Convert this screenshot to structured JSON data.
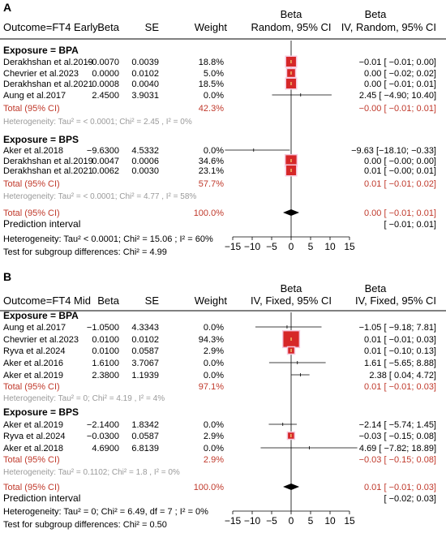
{
  "chart_data": [
    {
      "panel": "A",
      "type": "forest",
      "header": {
        "outcome": "Outcome=FT4 Early",
        "beta": "Beta",
        "se": "SE",
        "weight": "Weight",
        "plot_line1": "Beta",
        "plot_line2": "Random, 95% CI",
        "ci_line1": "Beta",
        "ci_line2": "IV, Random, 95% CI"
      },
      "xlim": [
        -15,
        15
      ],
      "xticks": [
        "−15",
        "−10",
        "−5",
        "0",
        "5",
        "10",
        "15"
      ],
      "xtick_values": [
        -15,
        -10,
        -5,
        0,
        5,
        10,
        15
      ],
      "groups": [
        {
          "title": "Exposure = BPA",
          "studies": [
            {
              "study": "Derakhshan et al.2019",
              "beta": "−0.0070",
              "se": "0.0039",
              "weight": "18.8%",
              "ci_text": "−0.01 [ −0.01;  0.00]",
              "est": -0.01,
              "lo": -0.01,
              "hi": 0.0,
              "box": 1
            },
            {
              "study": "Chevrier et al.2023",
              "beta": "0.0000",
              "se": "0.0102",
              "weight": "5.0%",
              "ci_text": "0.00 [ −0.02;  0.02]",
              "est": 0.0,
              "lo": -0.02,
              "hi": 0.02,
              "box": 0.6
            },
            {
              "study": "Derakhshan et al.2021",
              "beta": "0.0008",
              "se": "0.0040",
              "weight": "18.5%",
              "ci_text": "0.00 [ −0.01;  0.01]",
              "est": 0.0,
              "lo": -0.01,
              "hi": 0.01,
              "box": 1
            },
            {
              "study": "Aung et al.2017",
              "beta": "2.4500",
              "se": "3.9031",
              "weight": "0.0%",
              "ci_text": "2.45 [ −4.90; 10.40]",
              "est": 2.45,
              "lo": -4.9,
              "hi": 10.4,
              "box": 0
            }
          ],
          "total": {
            "label": "Total (95% CI)",
            "weight": "42.3%",
            "ci_text": "−0.00 [ −0.01;  0.01]"
          },
          "heterogeneity": "Heterogeneity: Tau² = < 0.0001; Chi² = 2.45 , I² = 0%"
        },
        {
          "title": "Exposure = BPS",
          "studies": [
            {
              "study": "Aker et al.2018",
              "beta": "−9.6300",
              "se": "4.5332",
              "weight": "0.0%",
              "ci_text": "−9.63 [−18.10; −0.33]",
              "est": -9.63,
              "lo": -18.1,
              "hi": -0.33,
              "box": 0
            },
            {
              "study": "Derakhshan et al.2019",
              "beta": "0.0047",
              "se": "0.0006",
              "weight": "34.6%",
              "ci_text": "0.00 [ −0.00;  0.00]",
              "est": 0.0,
              "lo": -0.0,
              "hi": 0.0,
              "box": 1.2
            },
            {
              "study": "Derakhshan et al.2021",
              "beta": "0.0062",
              "se": "0.0030",
              "weight": "23.1%",
              "ci_text": "0.01 [ −0.00;  0.01]",
              "est": 0.01,
              "lo": -0.0,
              "hi": 0.01,
              "box": 1
            }
          ],
          "total": {
            "label": "Total (95% CI)",
            "weight": "57.7%",
            "ci_text": "0.01 [ −0.01;  0.02]"
          },
          "heterogeneity": "Heterogeneity: Tau² = < 0.0001; Chi² = 4.77 , I² = 58%"
        }
      ],
      "overall": {
        "label": "Total (95% CI)",
        "weight": "100.0%",
        "ci_text": "0.00 [ −0.01;  0.01]",
        "est": 0.0,
        "lo": -0.01,
        "hi": 0.01
      },
      "prediction": {
        "label": "Prediction interval",
        "ci_text": "[ −0.01;  0.01]"
      },
      "heterogeneity": "Heterogeneity: Tau² < 0.0001; Chi² = 15.06 ; I² = 60%",
      "subgroup_test": "Test for subgroup differences: Chi² = 4.99"
    },
    {
      "panel": "B",
      "type": "forest",
      "header": {
        "outcome": "Outcome=FT4 Mid",
        "beta": "Beta",
        "se": "SE",
        "weight": "Weight",
        "plot_line1": "Beta",
        "plot_line2": "IV, Fixed, 95% CI",
        "ci_line1": "Beta",
        "ci_line2": "IV, Fixed, 95% CI"
      },
      "xlim": [
        -15,
        15
      ],
      "xticks": [
        "−15",
        "−10",
        "−5",
        "0",
        "5",
        "10",
        "15"
      ],
      "xtick_values": [
        -15,
        -10,
        -5,
        0,
        5,
        10,
        15
      ],
      "groups": [
        {
          "title": "Exposure = BPA",
          "studies": [
            {
              "study": "Aung et al.2017",
              "beta": "−1.0500",
              "se": "4.3343",
              "weight": "0.0%",
              "ci_text": "−1.05 [ −9.18;  7.81]",
              "est": -1.05,
              "lo": -9.18,
              "hi": 7.81,
              "box": 0
            },
            {
              "study": "Chevrier et al.2023",
              "beta": "0.0100",
              "se": "0.0102",
              "weight": "94.3%",
              "ci_text": "0.01 [ −0.01;  0.03]",
              "est": 0.01,
              "lo": -0.01,
              "hi": 0.03,
              "box": 2.2
            },
            {
              "study": "Ryva et al.2024",
              "beta": "0.0100",
              "se": "0.0587",
              "weight": "2.9%",
              "ci_text": "0.01 [ −0.10;  0.13]",
              "est": 0.01,
              "lo": -0.1,
              "hi": 0.13,
              "box": 0.25
            },
            {
              "study": "Aker et al.2016",
              "beta": "1.6100",
              "se": "3.7067",
              "weight": "0.0%",
              "ci_text": "1.61 [ −5.65;  8.88]",
              "est": 1.61,
              "lo": -5.65,
              "hi": 8.88,
              "box": 0
            },
            {
              "study": "Aker et al.2019",
              "beta": "2.3800",
              "se": "1.1939",
              "weight": "0.0%",
              "ci_text": "2.38 [  0.04;  4.72]",
              "est": 2.38,
              "lo": 0.04,
              "hi": 4.72,
              "box": 0
            }
          ],
          "total": {
            "label": "Total (95% CI)",
            "weight": "97.1%",
            "ci_text": "0.01 [ −0.01;  0.03]"
          },
          "heterogeneity": "Heterogeneity: Tau² = 0; Chi² = 4.19 , I² = 4%"
        },
        {
          "title": "Exposure = BPS",
          "studies": [
            {
              "study": "Aker et al.2019",
              "beta": "−2.1400",
              "se": "1.8342",
              "weight": "0.0%",
              "ci_text": "−2.14 [ −5.74;  1.45]",
              "est": -2.14,
              "lo": -5.74,
              "hi": 1.45,
              "box": 0
            },
            {
              "study": "Ryva et al.2024",
              "beta": "−0.0300",
              "se": "0.0587",
              "weight": "2.9%",
              "ci_text": "−0.03 [ −0.15;  0.08]",
              "est": -0.03,
              "lo": -0.15,
              "hi": 0.08,
              "box": 0.25
            },
            {
              "study": "Aker et al.2018",
              "beta": "4.6900",
              "se": "6.8139",
              "weight": "0.0%",
              "ci_text": "4.69 [ −7.82; 18.89]",
              "est": 4.69,
              "lo": -7.82,
              "hi": 18.89,
              "box": 0
            }
          ],
          "total": {
            "label": "Total (95% CI)",
            "weight": "2.9%",
            "ci_text": "−0.03 [ −0.15;  0.08]"
          },
          "heterogeneity": "Heterogeneity: Tau² = 0.1102; Chi² = 1.8 , I² = 0%"
        }
      ],
      "overall": {
        "label": "Total (95% CI)",
        "weight": "100.0%",
        "ci_text": "0.01 [ −0.01;  0.03]",
        "est": 0.01,
        "lo": -0.01,
        "hi": 0.03
      },
      "prediction": {
        "label": "Prediction interval",
        "ci_text": "[ −0.02;  0.03]"
      },
      "heterogeneity": "Heterogeneity: Tau² = 0; Chi² = 6.49, df = 7 ;  I² = 0%",
      "subgroup_test": "Test for subgroup differences: Chi² = 0.50"
    }
  ],
  "colors": {
    "total_text": "#c0392b",
    "hetero_text": "#9a9a9a",
    "box": "#d62728",
    "box_highlight": "#f6c9de",
    "diamond": "#000000",
    "line": "#000000"
  }
}
